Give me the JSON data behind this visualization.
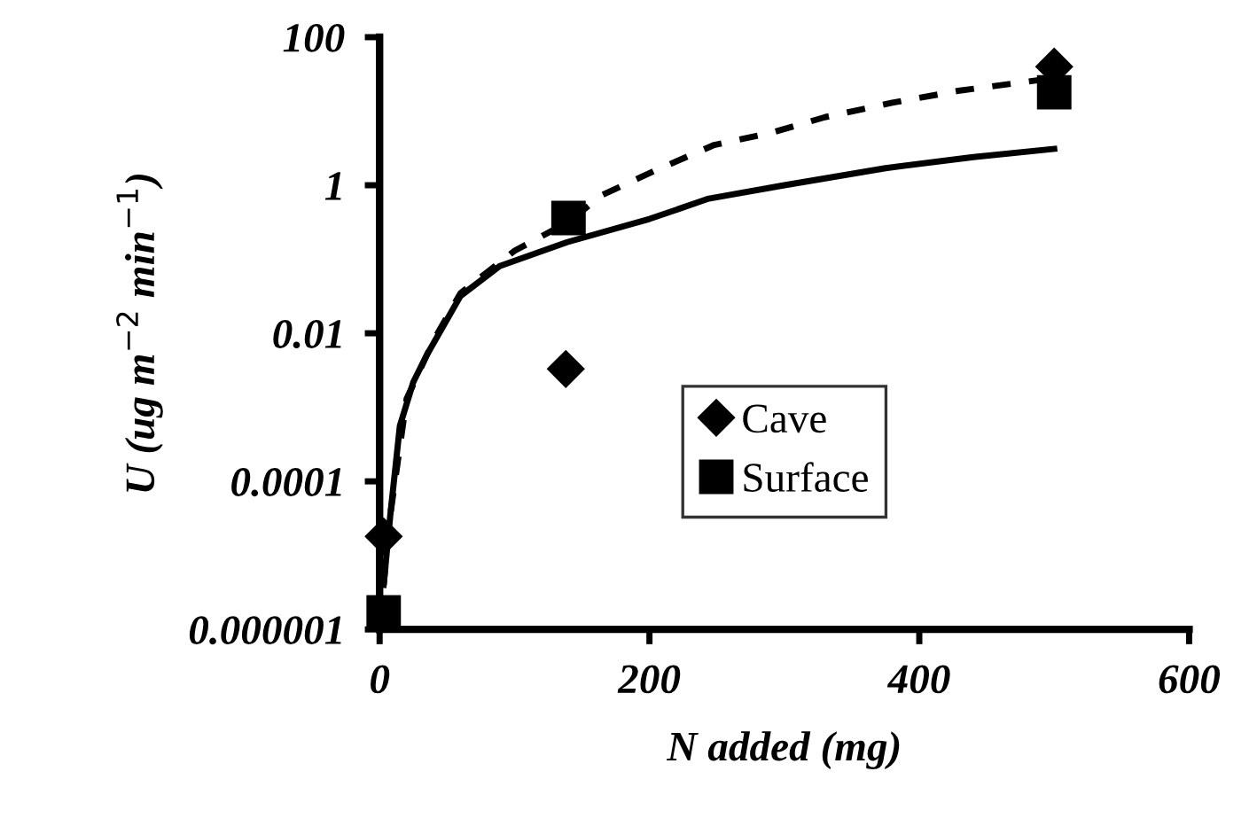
{
  "chart_data": {
    "type": "scatter",
    "xlabel": "N added (mg)",
    "ylabel": "U (ug m$^{−2}$ min$^{−1}$)",
    "log": "y",
    "xlim": [
      0,
      600
    ],
    "xticks": [
      0,
      200,
      400,
      600
    ],
    "ylim": [
      1e-06,
      100
    ],
    "yticks": [
      {
        "value": 1e-06,
        "label": "0.000001"
      },
      {
        "value": 0.0001,
        "label": "0.0001"
      },
      {
        "value": 0.01,
        "label": "0.01"
      },
      {
        "value": 1,
        "label": "1"
      },
      {
        "value": 100,
        "label": "100"
      }
    ],
    "grid": false,
    "legend": "center",
    "series": [
      {
        "name": "Cave",
        "marker": "diamond",
        "color": "#000000",
        "x": [
          3,
          138,
          500
        ],
        "values": [
          1.8e-05,
          0.0033,
          40
        ]
      },
      {
        "name": "Surface",
        "marker": "square",
        "color": "#000000",
        "x": [
          3,
          140,
          500
        ],
        "values": [
          1.7e-06,
          0.36,
          18
        ]
      },
      {
        "type": "line",
        "line_style": "solid",
        "color": "#000000",
        "x": [
          3,
          8,
          15,
          25,
          35,
          60,
          89,
          139,
          200,
          244,
          300,
          375,
          440,
          500
        ],
        "values": [
          4e-06,
          3.6e-05,
          0.00056,
          0.0022,
          0.0051,
          0.032,
          0.081,
          0.17,
          0.35,
          0.66,
          1.0,
          1.7,
          2.4,
          3.1
        ]
      },
      {
        "type": "line",
        "line_style": "dashed",
        "color": "#000000",
        "x": [
          3,
          8,
          20,
          40,
          60,
          100,
          140,
          165,
          205,
          248,
          290,
          330,
          380,
          430,
          500
        ],
        "values": [
          4e-06,
          3.6e-05,
          0.0013,
          0.008,
          0.035,
          0.13,
          0.32,
          0.74,
          1.6,
          3.5,
          5.1,
          8.3,
          13,
          19,
          28
        ]
      }
    ]
  }
}
